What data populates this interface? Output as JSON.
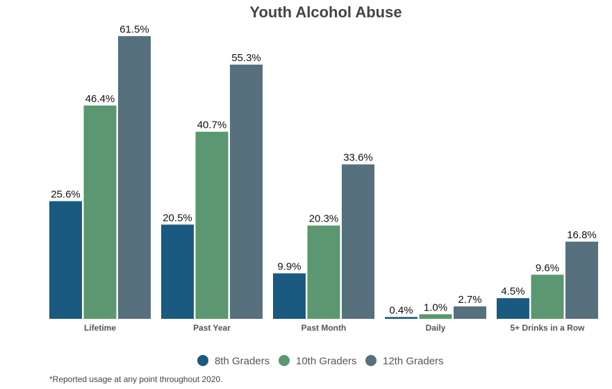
{
  "chart_data": {
    "type": "bar",
    "title": "Youth Alcohol Abuse",
    "categories": [
      "Lifetime",
      "Past Year",
      "Past Month",
      "Daily",
      "5+ Drinks in a Row"
    ],
    "series": [
      {
        "name": "8th Graders",
        "color": "#1a5a80",
        "values": [
          25.6,
          20.5,
          9.9,
          0.4,
          4.5
        ],
        "labels": [
          "25.6%",
          "20.5%",
          "9.9%",
          "0.4%",
          "4.5%"
        ]
      },
      {
        "name": "10th Graders",
        "color": "#5b9770",
        "values": [
          46.4,
          40.7,
          20.3,
          1.0,
          9.6
        ],
        "labels": [
          "46.4%",
          "40.7%",
          "20.3%",
          "1.0%",
          "9.6%"
        ]
      },
      {
        "name": "12th Graders",
        "color": "#56707d",
        "values": [
          61.5,
          55.3,
          33.6,
          2.7,
          16.8
        ],
        "labels": [
          "61.5%",
          "55.3%",
          "33.6%",
          "2.7%",
          "16.8%"
        ]
      }
    ],
    "ylim": [
      0,
      61.5
    ],
    "xlabel": "",
    "ylabel": "",
    "grid": false,
    "legend_position": "bottom-center",
    "footnote": "*Reported usage at any point throughout 2020."
  }
}
